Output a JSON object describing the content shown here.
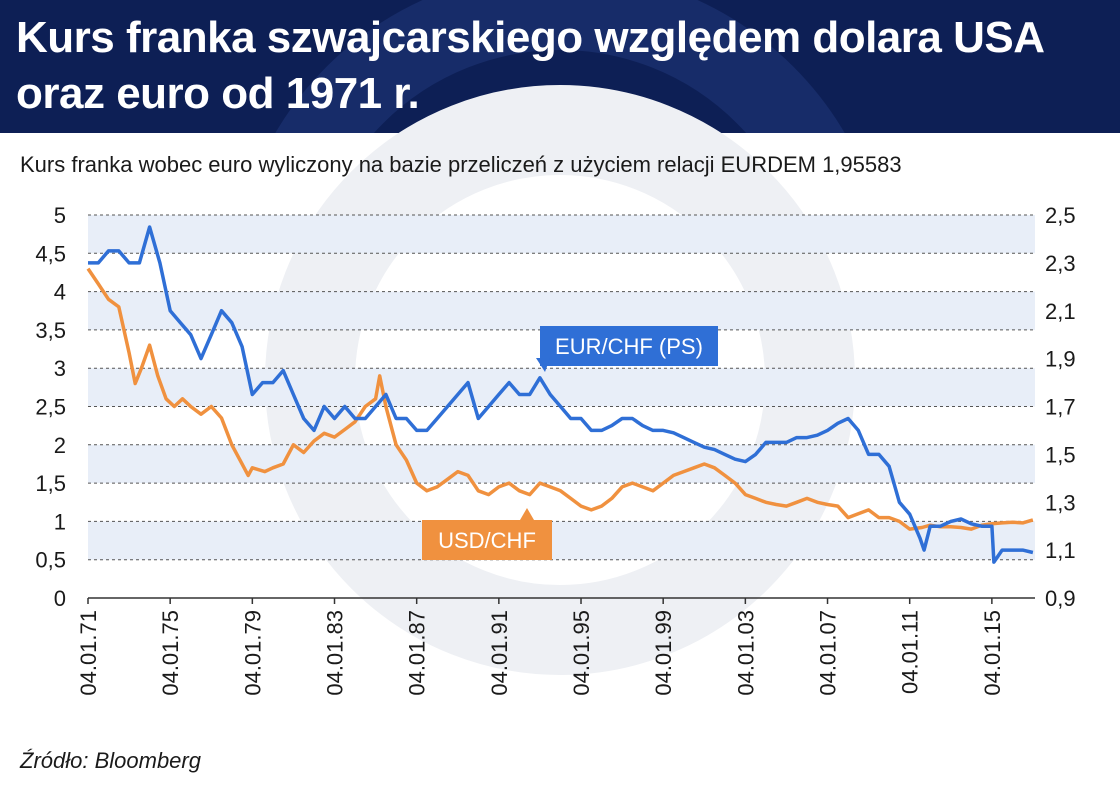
{
  "header": {
    "title_line1": "Kurs franka szwajcarskiego względem dolara USA",
    "title_line2": "oraz euro od 1971 r."
  },
  "subtitle": "Kurs franka wobec euro wyliczony na bazie przeliczeń z użyciem relacji EURDEM 1,95583",
  "source": "Źródło: Bloomberg",
  "colors": {
    "header_bg": "#0d1f55",
    "usd_chf": "#f0913f",
    "eur_chf": "#2f6fd6",
    "band": "#e8eef8",
    "grid": "#555555"
  },
  "chart_data": {
    "type": "line",
    "title": "",
    "x_tick_labels": [
      "04.01.71",
      "04.01.75",
      "04.01.79",
      "04.01.83",
      "04.01.87",
      "04.01.91",
      "04.01.95",
      "04.01.99",
      "04.01.03",
      "04.01.07",
      "04.01.11",
      "04.01.15"
    ],
    "x_range": [
      1971,
      2017.1
    ],
    "y_left": {
      "ylim": [
        0,
        5
      ],
      "tick_labels": [
        "0",
        "0,5",
        "1",
        "1,5",
        "2",
        "2,5",
        "3",
        "3,5",
        "4",
        "4,5",
        "5"
      ]
    },
    "y_right": {
      "ylim": [
        0.9,
        2.5
      ],
      "tick_labels": [
        "0,9",
        "1,1",
        "1,3",
        "1,5",
        "1,7",
        "1,9",
        "2,1",
        "2,3",
        "2,5"
      ]
    },
    "grid": true,
    "series": [
      {
        "name": "USD/CHF",
        "axis": "left",
        "x": [
          1971,
          1971.5,
          1972,
          1972.5,
          1973,
          1973.3,
          1973.6,
          1974,
          1974.4,
          1974.8,
          1975.2,
          1975.6,
          1976,
          1976.5,
          1977,
          1977.5,
          1978,
          1978.4,
          1978.8,
          1979,
          1979.6,
          1980,
          1980.5,
          1981,
          1981.5,
          1982,
          1982.5,
          1983,
          1983.5,
          1984,
          1984.5,
          1985,
          1985.2,
          1985.5,
          1985.8,
          1986,
          1986.5,
          1987,
          1987.5,
          1988,
          1988.5,
          1989,
          1989.5,
          1990,
          1990.5,
          1991,
          1991.5,
          1992,
          1992.5,
          1993,
          1993.5,
          1994,
          1994.5,
          1995,
          1995.5,
          1996,
          1996.5,
          1997,
          1997.5,
          1998,
          1998.5,
          1999,
          1999.5,
          2000,
          2000.5,
          2001,
          2001.5,
          2002,
          2002.5,
          2003,
          2003.5,
          2004,
          2004.5,
          2005,
          2005.5,
          2006,
          2006.5,
          2007,
          2007.5,
          2008,
          2008.5,
          2009,
          2009.5,
          2010,
          2010.5,
          2011,
          2011.6,
          2012,
          2012.5,
          2013,
          2013.5,
          2014,
          2014.5,
          2015,
          2015.5,
          2016,
          2016.5,
          2017
        ],
        "values": [
          4.3,
          4.1,
          3.9,
          3.8,
          3.2,
          2.8,
          3.0,
          3.3,
          2.9,
          2.6,
          2.5,
          2.6,
          2.5,
          2.4,
          2.5,
          2.35,
          2.0,
          1.8,
          1.6,
          1.7,
          1.65,
          1.7,
          1.75,
          2.0,
          1.9,
          2.05,
          2.15,
          2.1,
          2.2,
          2.3,
          2.5,
          2.6,
          2.9,
          2.5,
          2.2,
          2.0,
          1.8,
          1.5,
          1.4,
          1.45,
          1.55,
          1.65,
          1.6,
          1.4,
          1.35,
          1.45,
          1.5,
          1.4,
          1.35,
          1.5,
          1.45,
          1.4,
          1.3,
          1.2,
          1.15,
          1.2,
          1.3,
          1.45,
          1.5,
          1.45,
          1.4,
          1.5,
          1.6,
          1.65,
          1.7,
          1.75,
          1.7,
          1.6,
          1.5,
          1.35,
          1.3,
          1.25,
          1.22,
          1.2,
          1.25,
          1.3,
          1.25,
          1.22,
          1.2,
          1.05,
          1.1,
          1.15,
          1.05,
          1.05,
          1.0,
          0.9,
          0.92,
          0.95,
          0.93,
          0.93,
          0.92,
          0.9,
          0.95,
          0.97,
          0.98,
          0.99,
          0.98,
          1.02
        ]
      },
      {
        "name": "EUR/CHF (PS)",
        "axis": "right",
        "x": [
          1971,
          1971.5,
          1972,
          1972.5,
          1973,
          1973.5,
          1974,
          1974.5,
          1975,
          1975.5,
          1976,
          1976.5,
          1977,
          1977.5,
          1978,
          1978.5,
          1979,
          1979.5,
          1980,
          1980.5,
          1981,
          1981.5,
          1982,
          1982.5,
          1983,
          1983.5,
          1984,
          1984.5,
          1985,
          1985.5,
          1986,
          1986.5,
          1987,
          1987.5,
          1988,
          1988.5,
          1989,
          1989.5,
          1990,
          1990.5,
          1991,
          1991.5,
          1992,
          1992.5,
          1993,
          1993.5,
          1994,
          1994.5,
          1995,
          1995.5,
          1996,
          1996.5,
          1997,
          1997.5,
          1998,
          1998.5,
          1999,
          1999.5,
          2000,
          2000.5,
          2001,
          2001.5,
          2002,
          2002.5,
          2003,
          2003.5,
          2004,
          2004.5,
          2005,
          2005.5,
          2006,
          2006.5,
          2007,
          2007.5,
          2008,
          2008.5,
          2009,
          2009.5,
          2010,
          2010.5,
          2011,
          2011.5,
          2011.7,
          2012,
          2012.5,
          2013,
          2013.5,
          2014,
          2014.5,
          2015,
          2015.1,
          2015.5,
          2016,
          2016.5,
          2017
        ],
        "values": [
          2.3,
          2.3,
          2.35,
          2.35,
          2.3,
          2.3,
          2.45,
          2.3,
          2.1,
          2.05,
          2.0,
          1.9,
          2.0,
          2.1,
          2.05,
          1.95,
          1.75,
          1.8,
          1.8,
          1.85,
          1.75,
          1.65,
          1.6,
          1.7,
          1.65,
          1.7,
          1.65,
          1.65,
          1.7,
          1.75,
          1.65,
          1.65,
          1.6,
          1.6,
          1.65,
          1.7,
          1.75,
          1.8,
          1.65,
          1.7,
          1.75,
          1.8,
          1.75,
          1.75,
          1.82,
          1.75,
          1.7,
          1.65,
          1.65,
          1.6,
          1.6,
          1.62,
          1.65,
          1.65,
          1.62,
          1.6,
          1.6,
          1.59,
          1.57,
          1.55,
          1.53,
          1.52,
          1.5,
          1.48,
          1.47,
          1.5,
          1.55,
          1.55,
          1.55,
          1.57,
          1.57,
          1.58,
          1.6,
          1.63,
          1.65,
          1.6,
          1.5,
          1.5,
          1.45,
          1.3,
          1.25,
          1.15,
          1.1,
          1.2,
          1.2,
          1.22,
          1.23,
          1.21,
          1.2,
          1.2,
          1.05,
          1.1,
          1.1,
          1.1,
          1.09
        ]
      }
    ],
    "annotations": [
      {
        "label": "EUR/CHF (PS)",
        "series": "EUR/CHF (PS)"
      },
      {
        "label": "USD/CHF",
        "series": "USD/CHF"
      }
    ]
  }
}
